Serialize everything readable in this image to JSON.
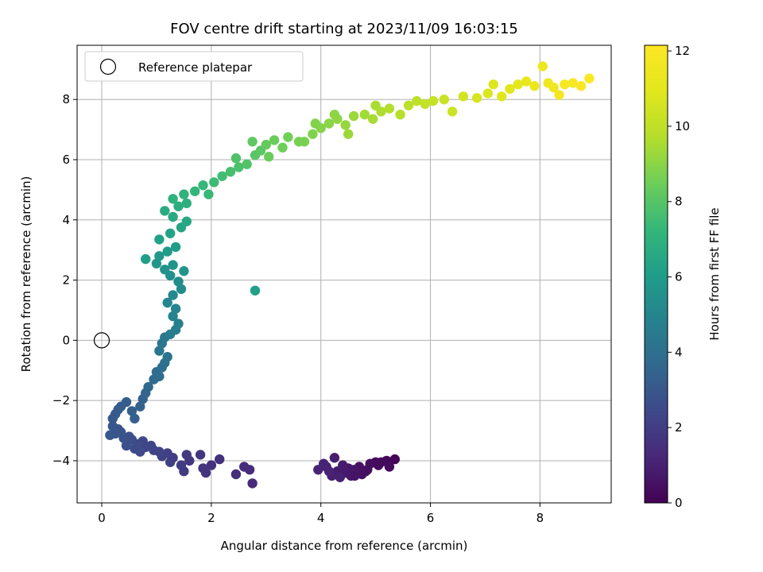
{
  "chart_data": {
    "type": "scatter",
    "title": "FOV centre drift starting at 2023/11/09 16:03:15",
    "xlabel": "Angular distance from reference (arcmin)",
    "ylabel": "Rotation from reference (arcmin)",
    "xlim": [
      -0.45,
      9.3
    ],
    "ylim": [
      -5.4,
      9.8
    ],
    "xticks": [
      0,
      2,
      4,
      6,
      8
    ],
    "xtick_labels": [
      "0",
      "2",
      "4",
      "6",
      "8"
    ],
    "yticks": [
      -4,
      -2,
      0,
      2,
      4,
      6,
      8
    ],
    "ytick_labels": [
      "−4",
      "−2",
      "0",
      "2",
      "4",
      "6",
      "8"
    ],
    "grid": true,
    "legend": {
      "position": "top-left",
      "entries": [
        "Reference platepar"
      ]
    },
    "reference_point": {
      "x": 0,
      "y": 0,
      "label": "Reference platepar"
    },
    "colorbar": {
      "label": "Hours from first FF file",
      "range": [
        0,
        12.15
      ],
      "ticks": [
        0,
        2,
        4,
        6,
        8,
        10,
        12
      ],
      "tick_labels": [
        "0",
        "2",
        "4",
        "6",
        "8",
        "10",
        "12"
      ],
      "colormap": "viridis"
    },
    "series": [
      {
        "points": [
          [
            5.35,
            -3.95,
            0.1
          ],
          [
            5.2,
            -4.0,
            0.2
          ],
          [
            5.1,
            -4.05,
            0.25
          ],
          [
            5.25,
            -4.2,
            0.3
          ],
          [
            5.0,
            -4.05,
            0.35
          ],
          [
            4.9,
            -4.1,
            0.4
          ],
          [
            4.85,
            -4.3,
            0.45
          ],
          [
            4.7,
            -4.2,
            0.5
          ],
          [
            4.75,
            -4.45,
            0.55
          ],
          [
            4.6,
            -4.3,
            0.6
          ],
          [
            4.55,
            -4.5,
            0.65
          ],
          [
            4.5,
            -4.25,
            0.7
          ],
          [
            4.45,
            -4.4,
            0.75
          ],
          [
            4.4,
            -4.15,
            0.8
          ],
          [
            4.3,
            -4.35,
            0.85
          ],
          [
            4.25,
            -3.9,
            0.9
          ],
          [
            4.2,
            -4.5,
            0.95
          ],
          [
            4.1,
            -4.2,
            1.0
          ],
          [
            4.05,
            -4.1,
            1.05
          ],
          [
            3.95,
            -4.3,
            1.1
          ],
          [
            4.35,
            -4.55,
            1.0
          ],
          [
            4.62,
            -4.5,
            0.6
          ],
          [
            4.82,
            -4.35,
            0.45
          ],
          [
            5.05,
            -4.15,
            0.3
          ],
          [
            4.15,
            -4.35,
            1.05
          ],
          [
            2.75,
            -4.75,
            1.3
          ],
          [
            2.7,
            -4.3,
            1.35
          ],
          [
            2.6,
            -4.2,
            1.4
          ],
          [
            2.45,
            -4.45,
            1.45
          ],
          [
            2.15,
            -3.95,
            1.55
          ],
          [
            2.0,
            -4.15,
            1.6
          ],
          [
            1.9,
            -4.4,
            1.65
          ],
          [
            1.85,
            -4.25,
            1.7
          ],
          [
            1.8,
            -3.8,
            1.75
          ],
          [
            1.6,
            -4.0,
            1.8
          ],
          [
            1.55,
            -3.8,
            1.85
          ],
          [
            1.5,
            -4.35,
            1.9
          ],
          [
            1.45,
            -4.15,
            1.95
          ],
          [
            1.3,
            -3.9,
            2.0
          ],
          [
            1.25,
            -4.05,
            2.05
          ],
          [
            1.2,
            -3.75,
            2.1
          ],
          [
            1.1,
            -3.85,
            2.15
          ],
          [
            1.05,
            -3.7,
            2.2
          ],
          [
            0.95,
            -3.65,
            2.25
          ],
          [
            0.9,
            -3.5,
            2.3
          ],
          [
            0.8,
            -3.55,
            2.35
          ],
          [
            0.75,
            -3.35,
            2.4
          ],
          [
            0.7,
            -3.7,
            2.45
          ],
          [
            0.65,
            -3.45,
            2.5
          ],
          [
            0.6,
            -3.6,
            2.55
          ],
          [
            0.55,
            -3.3,
            2.6
          ],
          [
            0.5,
            -3.2,
            2.65
          ],
          [
            0.45,
            -3.5,
            2.7
          ],
          [
            0.4,
            -3.25,
            2.75
          ],
          [
            0.35,
            -3.05,
            2.8
          ],
          [
            0.3,
            -2.95,
            2.85
          ],
          [
            0.25,
            -3.1,
            2.9
          ],
          [
            0.2,
            -2.85,
            2.95
          ],
          [
            0.15,
            -3.15,
            3.0
          ],
          [
            0.2,
            -2.6,
            3.05
          ],
          [
            0.25,
            -2.45,
            3.1
          ],
          [
            0.3,
            -2.3,
            3.15
          ],
          [
            0.35,
            -2.2,
            3.2
          ],
          [
            0.45,
            -2.05,
            3.25
          ],
          [
            0.55,
            -2.35,
            3.3
          ],
          [
            0.6,
            -2.6,
            3.35
          ],
          [
            0.7,
            -2.2,
            3.4
          ],
          [
            0.75,
            -1.95,
            3.45
          ],
          [
            0.8,
            -1.75,
            3.55
          ],
          [
            0.85,
            -1.55,
            3.65
          ],
          [
            0.95,
            -1.3,
            3.75
          ],
          [
            1.0,
            -1.05,
            3.85
          ],
          [
            1.05,
            -1.2,
            3.9
          ],
          [
            1.1,
            -0.9,
            4.0
          ],
          [
            1.15,
            -0.75,
            4.05
          ],
          [
            1.2,
            -0.55,
            4.15
          ],
          [
            1.05,
            -0.35,
            4.25
          ],
          [
            1.1,
            -0.1,
            4.35
          ],
          [
            1.15,
            0.1,
            4.45
          ],
          [
            1.25,
            0.2,
            4.55
          ],
          [
            1.35,
            0.35,
            4.65
          ],
          [
            1.4,
            0.55,
            4.75
          ],
          [
            1.3,
            0.8,
            4.85
          ],
          [
            1.35,
            1.05,
            4.95
          ],
          [
            1.2,
            1.25,
            5.05
          ],
          [
            1.3,
            1.5,
            5.15
          ],
          [
            1.45,
            1.7,
            5.25
          ],
          [
            1.4,
            1.95,
            5.35
          ],
          [
            1.25,
            2.15,
            5.45
          ],
          [
            1.15,
            2.35,
            5.55
          ],
          [
            1.3,
            2.5,
            5.65
          ],
          [
            1.5,
            2.3,
            5.7
          ],
          [
            1.0,
            2.55,
            5.75
          ],
          [
            1.05,
            2.8,
            5.85
          ],
          [
            1.2,
            2.95,
            5.95
          ],
          [
            1.35,
            3.1,
            6.05
          ],
          [
            0.8,
            2.7,
            6.1
          ],
          [
            1.05,
            3.35,
            6.2
          ],
          [
            1.25,
            3.55,
            6.3
          ],
          [
            1.45,
            3.75,
            6.4
          ],
          [
            1.55,
            3.95,
            6.5
          ],
          [
            1.3,
            4.1,
            6.6
          ],
          [
            1.15,
            4.3,
            6.7
          ],
          [
            1.4,
            4.45,
            6.8
          ],
          [
            1.55,
            4.55,
            6.9
          ],
          [
            1.3,
            4.7,
            7.0
          ],
          [
            1.5,
            4.85,
            7.1
          ],
          [
            1.7,
            4.95,
            7.2
          ],
          [
            1.85,
            5.15,
            7.3
          ],
          [
            1.95,
            4.85,
            7.35
          ],
          [
            2.05,
            5.25,
            7.45
          ],
          [
            2.2,
            5.45,
            7.55
          ],
          [
            2.35,
            5.6,
            7.65
          ],
          [
            2.5,
            5.75,
            7.75
          ],
          [
            2.45,
            6.05,
            7.85
          ],
          [
            2.65,
            5.85,
            7.95
          ],
          [
            2.8,
            6.15,
            8.05
          ],
          [
            2.9,
            6.3,
            8.1
          ],
          [
            2.75,
            6.6,
            8.2
          ],
          [
            3.0,
            6.5,
            8.3
          ],
          [
            3.15,
            6.65,
            8.4
          ],
          [
            3.05,
            6.1,
            8.45
          ],
          [
            3.3,
            6.4,
            8.5
          ],
          [
            3.4,
            6.75,
            8.55
          ],
          [
            2.8,
            1.65,
            6.2
          ],
          [
            3.7,
            6.6,
            8.7
          ],
          [
            3.85,
            6.85,
            8.8
          ],
          [
            4.0,
            7.05,
            8.9
          ],
          [
            4.15,
            7.2,
            9.0
          ],
          [
            4.3,
            7.35,
            9.1
          ],
          [
            4.45,
            7.15,
            9.2
          ],
          [
            4.6,
            7.45,
            9.3
          ],
          [
            4.5,
            6.85,
            9.3
          ],
          [
            4.8,
            7.5,
            9.4
          ],
          [
            4.95,
            7.35,
            9.5
          ],
          [
            5.1,
            7.6,
            9.6
          ],
          [
            5.25,
            7.7,
            9.7
          ],
          [
            5.45,
            7.5,
            9.8
          ],
          [
            5.6,
            7.8,
            9.9
          ],
          [
            5.75,
            7.95,
            10.0
          ],
          [
            5.9,
            7.85,
            10.1
          ],
          [
            6.05,
            7.95,
            10.2
          ],
          [
            6.25,
            8.0,
            10.3
          ],
          [
            6.4,
            7.6,
            10.35
          ],
          [
            6.6,
            8.1,
            10.5
          ],
          [
            6.85,
            8.05,
            10.6
          ],
          [
            7.05,
            8.2,
            10.75
          ],
          [
            7.15,
            8.5,
            10.85
          ],
          [
            7.3,
            8.1,
            10.9
          ],
          [
            7.45,
            8.35,
            11.0
          ],
          [
            7.6,
            8.5,
            11.1
          ],
          [
            7.75,
            8.6,
            11.25
          ],
          [
            7.9,
            8.45,
            11.35
          ],
          [
            8.05,
            9.1,
            11.45
          ],
          [
            8.15,
            8.55,
            11.55
          ],
          [
            8.25,
            8.4,
            11.65
          ],
          [
            8.35,
            8.15,
            11.75
          ],
          [
            8.45,
            8.5,
            11.85
          ],
          [
            8.6,
            8.55,
            11.95
          ],
          [
            8.75,
            8.45,
            12.0
          ],
          [
            8.9,
            8.7,
            12.1
          ],
          [
            3.6,
            6.6,
            8.65
          ],
          [
            3.9,
            7.2,
            8.85
          ],
          [
            4.25,
            7.5,
            9.05
          ],
          [
            5.0,
            7.8,
            9.55
          ]
        ]
      }
    ]
  }
}
